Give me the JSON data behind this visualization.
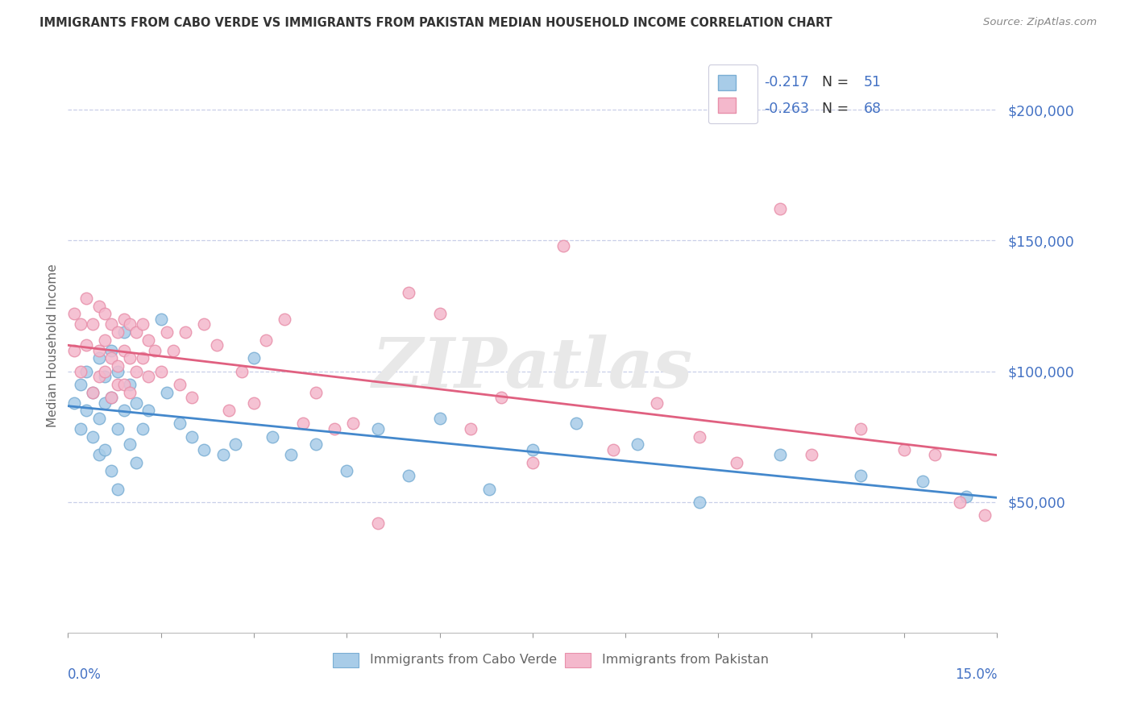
{
  "title": "IMMIGRANTS FROM CABO VERDE VS IMMIGRANTS FROM PAKISTAN MEDIAN HOUSEHOLD INCOME CORRELATION CHART",
  "source": "Source: ZipAtlas.com",
  "ylabel": "Median Household Income",
  "xlim": [
    0.0,
    0.15
  ],
  "ylim": [
    0,
    220000
  ],
  "yticks": [
    50000,
    100000,
    150000,
    200000
  ],
  "ytick_labels": [
    "$50,000",
    "$100,000",
    "$150,000",
    "$200,000"
  ],
  "cabo_verde_R": "-0.217",
  "cabo_verde_N": "51",
  "pakistan_R": "-0.263",
  "pakistan_N": "68",
  "cabo_verde_color": "#a8cce8",
  "pakistan_color": "#f4b8cc",
  "cabo_verde_edge": "#7aaed4",
  "pakistan_edge": "#e890aa",
  "cabo_verde_line": "#4488cc",
  "pakistan_line": "#e06080",
  "bg_color": "#ffffff",
  "grid_color": "#c8cfe8",
  "axis_blue": "#4472C4",
  "watermark": "ZIPatlas",
  "legend_text_color": "#4472C4",
  "legend_black": "#333333",
  "cabo_verde_x": [
    0.001,
    0.002,
    0.002,
    0.003,
    0.003,
    0.004,
    0.004,
    0.005,
    0.005,
    0.005,
    0.006,
    0.006,
    0.006,
    0.007,
    0.007,
    0.007,
    0.008,
    0.008,
    0.008,
    0.009,
    0.009,
    0.01,
    0.01,
    0.011,
    0.011,
    0.012,
    0.013,
    0.015,
    0.016,
    0.018,
    0.02,
    0.022,
    0.025,
    0.027,
    0.03,
    0.033,
    0.036,
    0.04,
    0.045,
    0.05,
    0.055,
    0.06,
    0.068,
    0.075,
    0.082,
    0.092,
    0.102,
    0.115,
    0.128,
    0.138,
    0.145
  ],
  "cabo_verde_y": [
    88000,
    95000,
    78000,
    100000,
    85000,
    92000,
    75000,
    105000,
    82000,
    68000,
    98000,
    88000,
    70000,
    108000,
    90000,
    62000,
    100000,
    78000,
    55000,
    115000,
    85000,
    95000,
    72000,
    88000,
    65000,
    78000,
    85000,
    120000,
    92000,
    80000,
    75000,
    70000,
    68000,
    72000,
    105000,
    75000,
    68000,
    72000,
    62000,
    78000,
    60000,
    82000,
    55000,
    70000,
    80000,
    72000,
    50000,
    68000,
    60000,
    58000,
    52000
  ],
  "pakistan_x": [
    0.001,
    0.001,
    0.002,
    0.002,
    0.003,
    0.003,
    0.004,
    0.004,
    0.005,
    0.005,
    0.005,
    0.006,
    0.006,
    0.006,
    0.007,
    0.007,
    0.007,
    0.008,
    0.008,
    0.008,
    0.009,
    0.009,
    0.009,
    0.01,
    0.01,
    0.01,
    0.011,
    0.011,
    0.012,
    0.012,
    0.013,
    0.013,
    0.014,
    0.015,
    0.016,
    0.017,
    0.018,
    0.019,
    0.02,
    0.022,
    0.024,
    0.026,
    0.028,
    0.03,
    0.032,
    0.035,
    0.038,
    0.04,
    0.043,
    0.046,
    0.05,
    0.055,
    0.06,
    0.065,
    0.07,
    0.075,
    0.08,
    0.088,
    0.095,
    0.102,
    0.108,
    0.115,
    0.12,
    0.128,
    0.135,
    0.14,
    0.144,
    0.148
  ],
  "pakistan_y": [
    108000,
    122000,
    118000,
    100000,
    128000,
    110000,
    92000,
    118000,
    125000,
    108000,
    98000,
    122000,
    112000,
    100000,
    118000,
    105000,
    90000,
    115000,
    102000,
    95000,
    120000,
    108000,
    95000,
    118000,
    105000,
    92000,
    115000,
    100000,
    118000,
    105000,
    112000,
    98000,
    108000,
    100000,
    115000,
    108000,
    95000,
    115000,
    90000,
    118000,
    110000,
    85000,
    100000,
    88000,
    112000,
    120000,
    80000,
    92000,
    78000,
    80000,
    42000,
    130000,
    122000,
    78000,
    90000,
    65000,
    148000,
    70000,
    88000,
    75000,
    65000,
    162000,
    68000,
    78000,
    70000,
    68000,
    50000,
    45000
  ]
}
